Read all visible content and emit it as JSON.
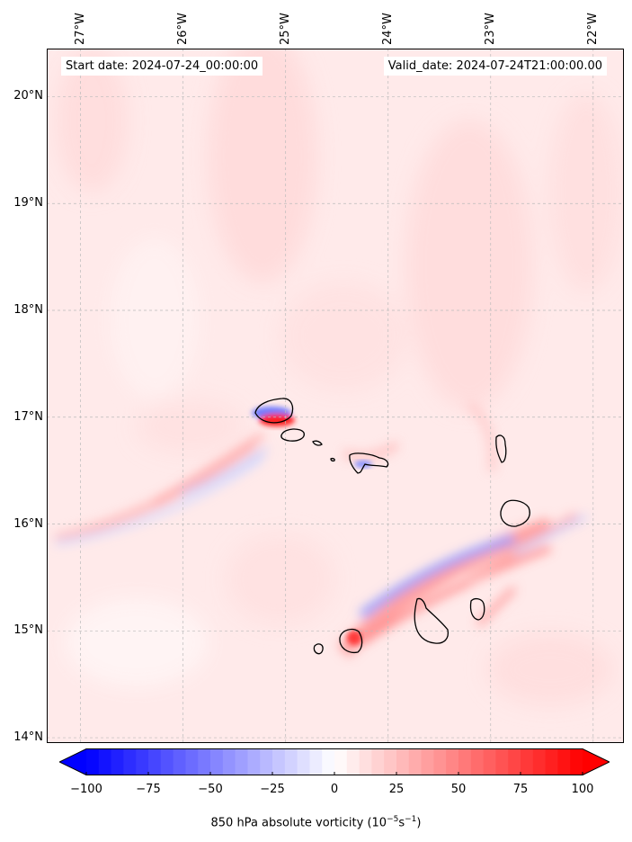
{
  "map": {
    "lat_labels": [
      "20°N",
      "19°N",
      "18°N",
      "17°N",
      "16°N",
      "15°N",
      "14°N"
    ],
    "lon_labels": [
      "27°W",
      "26°W",
      "25°W",
      "24°W",
      "23°W",
      "22°W"
    ],
    "extent": {
      "lon_min": -27.33,
      "lon_max": -21.7,
      "lat_min": 13.95,
      "lat_max": 20.45
    },
    "start_date": "Start date: 2024-07-24_00:00:00",
    "valid_date": "Valid_date: 2024-07-24T21:00:00.00",
    "colors": {
      "positive": "#ff0000",
      "negative": "#0000ff",
      "neutral": "#ffffff"
    }
  },
  "colorbar": {
    "ticks": [
      "−100",
      "−75",
      "−50",
      "−25",
      "0",
      "25",
      "50",
      "75",
      "100"
    ],
    "min": -100,
    "max": 100,
    "label_prefix": "850 hPa absolute vorticity (10",
    "label_exp1": "−5",
    "label_mid": "s",
    "label_exp2": "−1",
    "label_suffix": ")"
  }
}
